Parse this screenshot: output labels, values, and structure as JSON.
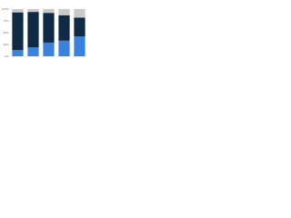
{
  "chart_data": {
    "type": "stacked_bar",
    "categories": [
      null,
      null,
      null,
      null,
      null
    ],
    "series": [
      {
        "color": "#3a82dc",
        "values": [
          13,
          19,
          29,
          33,
          42
        ]
      },
      {
        "color": "#102a45",
        "values": [
          80,
          75,
          63,
          54,
          40
        ]
      },
      {
        "color": "#c9c9c9",
        "values": [
          7,
          6,
          8,
          13,
          18
        ]
      }
    ],
    "ylim": [
      0,
      100
    ],
    "yticks": [
      {
        "value": 0,
        "label": "0%"
      },
      {
        "value": 25,
        "label": "25%"
      },
      {
        "value": 50,
        "label": "50%"
      },
      {
        "value": 75,
        "label": "75%"
      },
      {
        "value": 100,
        "label": "100%"
      }
    ],
    "grid": true
  }
}
